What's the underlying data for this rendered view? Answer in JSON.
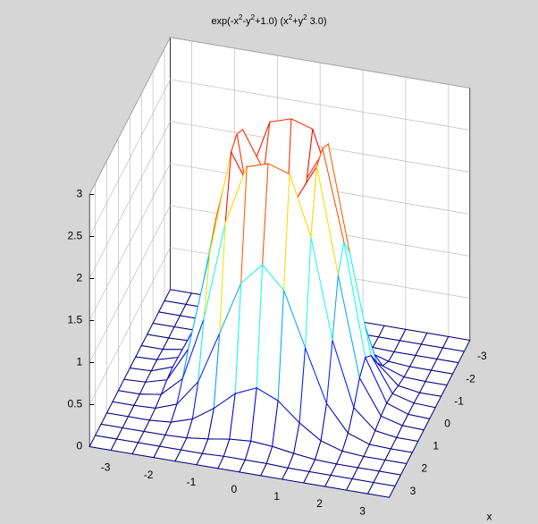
{
  "chart_data": {
    "type": "surface",
    "title": [
      "exp(-x",
      "2",
      "-y",
      "2",
      "+1.0) (x",
      "2",
      "+y",
      "2",
      " 3.0)"
    ],
    "xlabel": "x",
    "x": [
      -3.5,
      -3,
      -2.5,
      -2,
      -1.5,
      -1,
      -0.5,
      0,
      0.5,
      1,
      1.5,
      2,
      2.5,
      3,
      3.5
    ],
    "y": [
      -3.5,
      -3,
      -2.5,
      -2,
      -1.5,
      -1,
      -0.5,
      0,
      0.5,
      1,
      1.5,
      2,
      2.5,
      3,
      3.5
    ],
    "z": [
      [
        0,
        0,
        0,
        0,
        0,
        0,
        0,
        0,
        0,
        0,
        0,
        0,
        0,
        0,
        0
      ],
      [
        0,
        0,
        0,
        0,
        0,
        0,
        0.01,
        0.01,
        0.01,
        0,
        0,
        0,
        0,
        0,
        0
      ],
      [
        0,
        0,
        0,
        0,
        0.01,
        0.04,
        0.08,
        0.1,
        0.08,
        0.04,
        0.01,
        0,
        0,
        0,
        0
      ],
      [
        0,
        0,
        0,
        0.02,
        0.1,
        0.27,
        0.49,
        0.6,
        0.49,
        0.27,
        0.1,
        0.02,
        0,
        0,
        0
      ],
      [
        0,
        0,
        0.01,
        0.1,
        0.41,
        1.03,
        1.67,
        1.93,
        1.67,
        1.03,
        0.41,
        0.1,
        0.01,
        0,
        0
      ],
      [
        0,
        0,
        0.04,
        0.27,
        1.03,
        2.21,
        2.92,
        3,
        2.92,
        2.21,
        1.03,
        0.27,
        0.04,
        0,
        0
      ],
      [
        0,
        0.01,
        0.08,
        0.49,
        1.67,
        2.92,
        2.47,
        1.59,
        2.47,
        2.92,
        1.67,
        0.49,
        0.08,
        0.01,
        0
      ],
      [
        0,
        0.01,
        0.1,
        0.6,
        1.93,
        3,
        1.59,
        0,
        1.59,
        3,
        1.93,
        0.6,
        0.1,
        0.01,
        0
      ],
      [
        0,
        0.01,
        0.08,
        0.49,
        1.67,
        2.92,
        2.47,
        1.59,
        2.47,
        2.92,
        1.67,
        0.49,
        0.08,
        0.01,
        0
      ],
      [
        0,
        0,
        0.04,
        0.27,
        1.03,
        2.21,
        2.92,
        3,
        2.92,
        2.21,
        1.03,
        0.27,
        0.04,
        0,
        0
      ],
      [
        0,
        0,
        0.01,
        0.1,
        0.41,
        1.03,
        1.67,
        1.93,
        1.67,
        1.03,
        0.41,
        0.1,
        0.01,
        0,
        0
      ],
      [
        0,
        0,
        0,
        0.02,
        0.1,
        0.27,
        0.49,
        0.6,
        0.49,
        0.27,
        0.1,
        0.02,
        0,
        0,
        0
      ],
      [
        0,
        0,
        0,
        0,
        0.01,
        0.04,
        0.08,
        0.1,
        0.08,
        0.04,
        0.01,
        0,
        0,
        0,
        0
      ],
      [
        0,
        0,
        0,
        0,
        0,
        0,
        0.01,
        0.01,
        0.01,
        0,
        0,
        0,
        0,
        0,
        0
      ],
      [
        0,
        0,
        0,
        0,
        0,
        0,
        0,
        0,
        0,
        0,
        0,
        0,
        0,
        0,
        0
      ]
    ],
    "xlim": [
      -3.5,
      3.5
    ],
    "ylim": [
      -3.5,
      3.5
    ],
    "zlim": [
      0,
      3
    ],
    "xticks": [
      -3,
      -2,
      -1,
      0,
      1,
      2,
      3
    ],
    "yticks": [
      -3,
      -2,
      -1,
      0,
      1,
      2,
      3
    ],
    "zticks": [
      0,
      0.5,
      1,
      1.5,
      2,
      2.5,
      3
    ],
    "colormap": "jet",
    "grid": true
  }
}
